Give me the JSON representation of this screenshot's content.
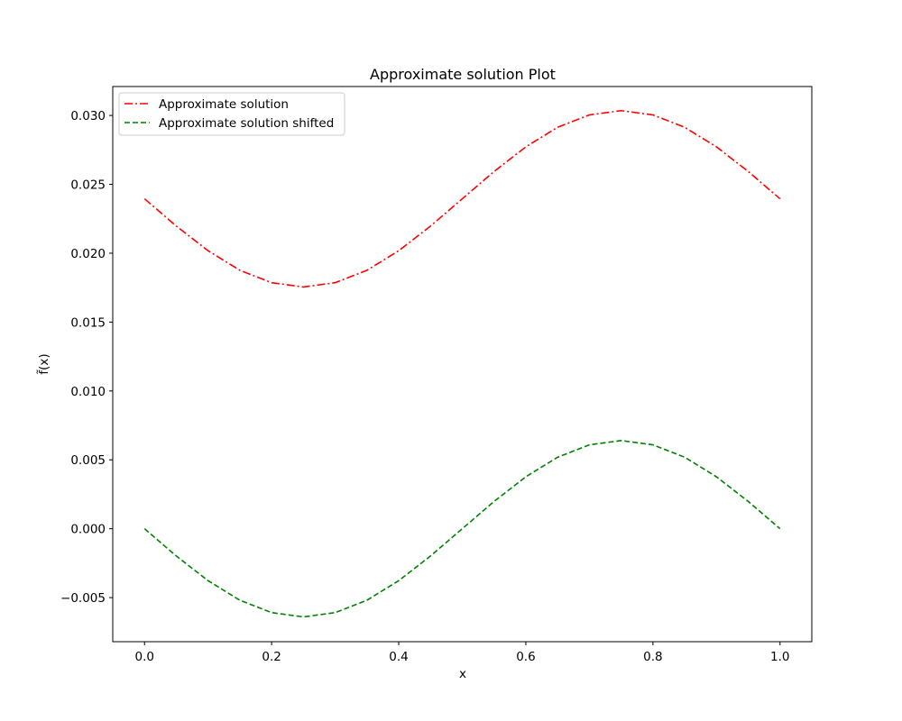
{
  "chart_data": {
    "type": "line",
    "title": "Approximate solution Plot",
    "xlabel": "x",
    "ylabel": "f̃(x)",
    "xlim": [
      -0.05,
      1.05
    ],
    "ylim": [
      -0.0082,
      0.0321
    ],
    "xticks": [
      0.0,
      0.2,
      0.4,
      0.6,
      0.8,
      1.0
    ],
    "xtick_labels": [
      "0.0",
      "0.2",
      "0.4",
      "0.6",
      "0.8",
      "1.0"
    ],
    "yticks": [
      -0.005,
      0.0,
      0.005,
      0.01,
      0.015,
      0.02,
      0.025,
      0.03
    ],
    "ytick_labels": [
      "−0.005",
      "0.000",
      "0.005",
      "0.010",
      "0.015",
      "0.020",
      "0.025",
      "0.030"
    ],
    "grid": false,
    "legend_position": "upper-left",
    "x": [
      0.0,
      0.05,
      0.1,
      0.15,
      0.2,
      0.25,
      0.3,
      0.35,
      0.4,
      0.45,
      0.5,
      0.55,
      0.6,
      0.65,
      0.7,
      0.75,
      0.8,
      0.85,
      0.9,
      0.95,
      1.0
    ],
    "series": [
      {
        "name": "Approximate solution",
        "color": "#ff0000",
        "linestyle": "dashdot",
        "values": [
          0.02395,
          0.02197,
          0.02018,
          0.01876,
          0.01786,
          0.01755,
          0.01786,
          0.01876,
          0.02018,
          0.02197,
          0.02395,
          0.02593,
          0.02772,
          0.02914,
          0.03004,
          0.03035,
          0.03004,
          0.02914,
          0.02772,
          0.02593,
          0.02395
        ]
      },
      {
        "name": "Approximate solution shifted",
        "color": "#008000",
        "linestyle": "dashed",
        "values": [
          0.0,
          -0.00198,
          -0.00377,
          -0.00519,
          -0.00609,
          -0.0064,
          -0.00609,
          -0.00519,
          -0.00377,
          -0.00198,
          0.0,
          0.00198,
          0.00377,
          0.00519,
          0.00609,
          0.0064,
          0.00609,
          0.00519,
          0.00377,
          0.00198,
          0.0
        ]
      }
    ]
  }
}
